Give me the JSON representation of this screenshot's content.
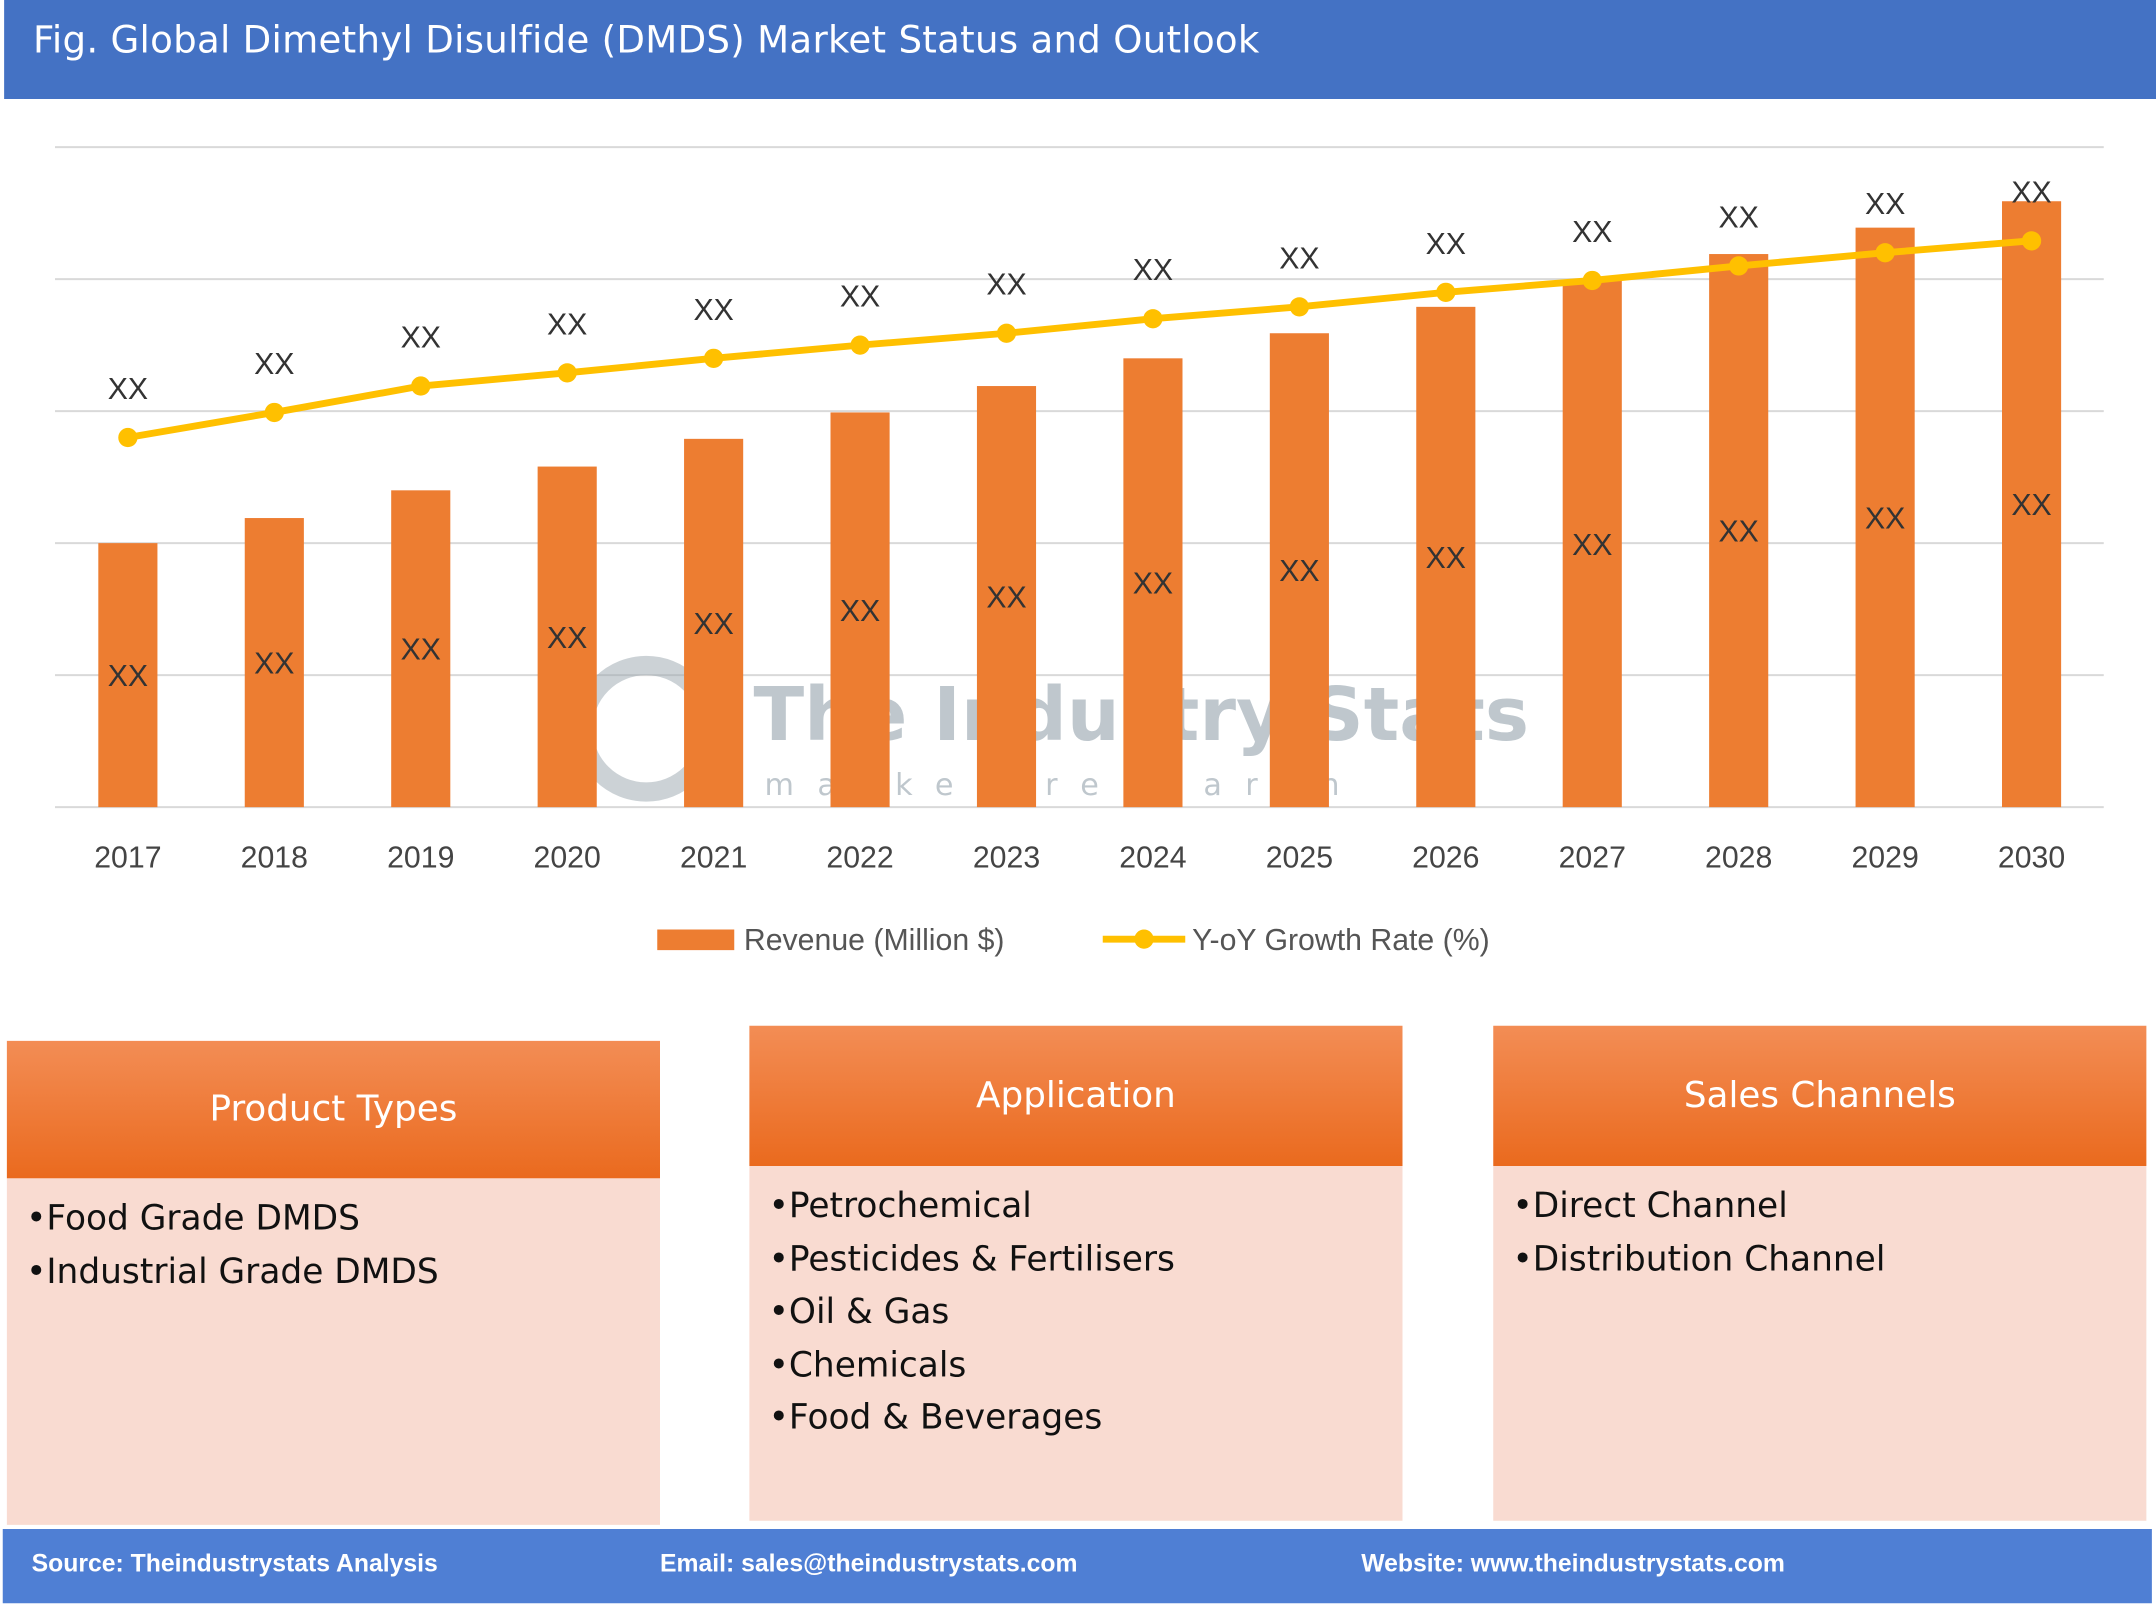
{
  "header": {
    "title": "Fig. Global Dimethyl Disulfide (DMDS) Market Status and Outlook"
  },
  "chart_data": {
    "type": "bar+line",
    "categories": [
      "2017",
      "2018",
      "2019",
      "2020",
      "2021",
      "2022",
      "2023",
      "2024",
      "2025",
      "2026",
      "2027",
      "2028",
      "2029",
      "2030"
    ],
    "series": [
      {
        "name": "Revenue (Million $)",
        "type": "bar",
        "color": "#ED7D31",
        "values": [
          2.0,
          2.19,
          2.4,
          2.58,
          2.79,
          2.99,
          3.19,
          3.4,
          3.59,
          3.79,
          3.99,
          4.19,
          4.39,
          4.59
        ],
        "data_labels": [
          "XX",
          "XX",
          "XX",
          "XX",
          "XX",
          "XX",
          "XX",
          "XX",
          "XX",
          "XX",
          "XX",
          "XX",
          "XX",
          "XX"
        ]
      },
      {
        "name": "Y-oY Growth Rate (%)",
        "type": "line",
        "color": "#FFC000",
        "values": [
          2.8,
          2.99,
          3.19,
          3.29,
          3.4,
          3.5,
          3.59,
          3.7,
          3.79,
          3.9,
          3.99,
          4.1,
          4.2,
          4.29
        ],
        "data_labels": [
          "XX",
          "XX",
          "XX",
          "XX",
          "XX",
          "XX",
          "XX",
          "XX",
          "XX",
          "XX",
          "XX",
          "XX",
          "XX",
          "XX"
        ]
      }
    ],
    "ylim": [
      0,
      5
    ],
    "y_tick_labels_shown": false,
    "grid": true,
    "legend": "bottom",
    "watermark": {
      "title": "The Industry Stats",
      "subtitle": "market research"
    }
  },
  "panels": [
    {
      "title": "Product Types",
      "items": [
        "Food Grade DMDS",
        "Industrial Grade DMDS"
      ]
    },
    {
      "title": "Application",
      "items": [
        "Petrochemical",
        "Pesticides & Fertilisers",
        "Oil & Gas",
        "Chemicals",
        "Food & Beverages"
      ]
    },
    {
      "title": "Sales Channels",
      "items": [
        "Direct Channel",
        "Distribution Channel"
      ]
    }
  ],
  "footer": {
    "source": "Source: Theindustrystats Analysis",
    "email": "Email: sales@theindustrystats.com",
    "website": "Website: www.theindustrystats.com"
  }
}
